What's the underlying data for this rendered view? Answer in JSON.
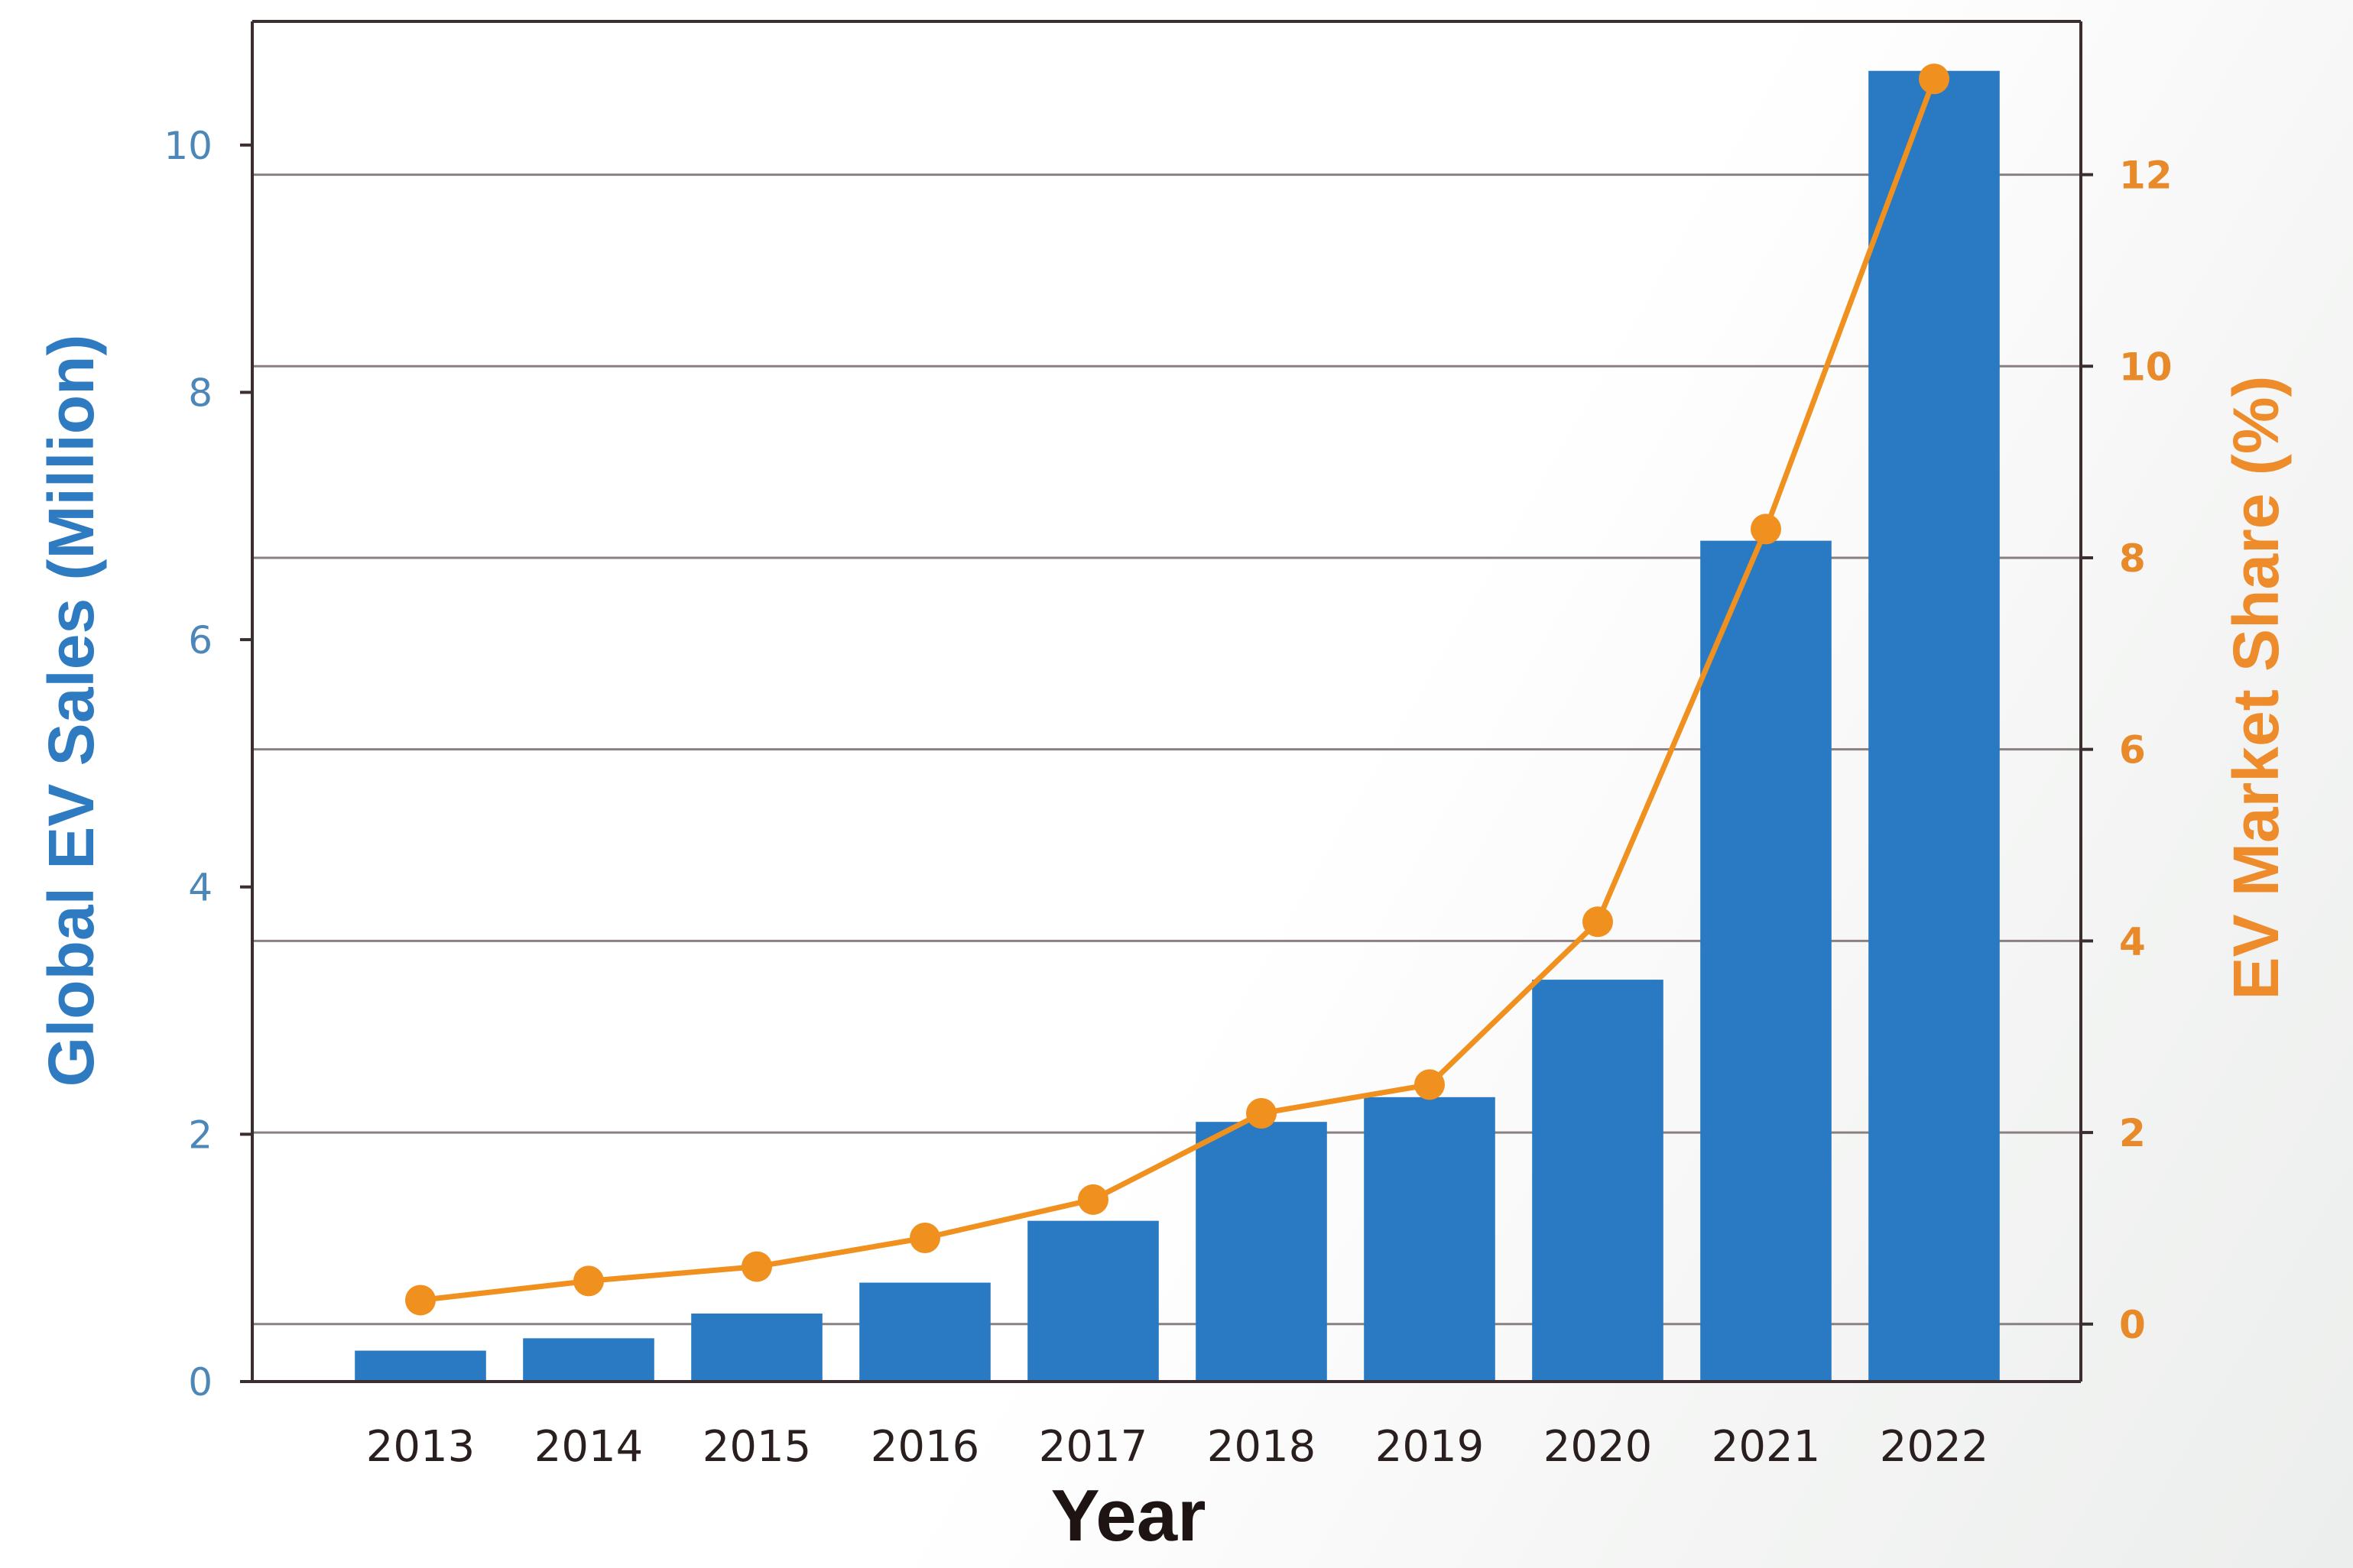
{
  "chart_data": {
    "type": "bar",
    "title": "",
    "categories": [
      "2013",
      "2014",
      "2015",
      "2016",
      "2017",
      "2018",
      "2019",
      "2020",
      "2021",
      "2022"
    ],
    "series": [
      {
        "name": "Global EV Sales (Million)",
        "type": "bar",
        "axis": "left",
        "color": "#2a7ac3",
        "values": [
          0.25,
          0.35,
          0.55,
          0.8,
          1.3,
          2.1,
          2.3,
          3.25,
          6.8,
          10.6
        ]
      },
      {
        "name": "EV Market Share (%)",
        "type": "line",
        "axis": "right",
        "color": "#f0901f",
        "values": [
          0.25,
          0.45,
          0.6,
          0.9,
          1.3,
          2.2,
          2.5,
          4.2,
          8.3,
          13.0
        ]
      }
    ],
    "xlabel": "Year",
    "ylabel": "Global EV Sales (Million)",
    "y2label": "EV Market Share (%)",
    "ylim": [
      0,
      11
    ],
    "y2lim": [
      -0.6,
      13.6
    ],
    "yticks": [
      0,
      2,
      4,
      6,
      8,
      10
    ],
    "y2ticks": [
      0,
      2,
      4,
      6,
      8,
      10,
      12
    ],
    "grid": true,
    "legend": "none"
  }
}
